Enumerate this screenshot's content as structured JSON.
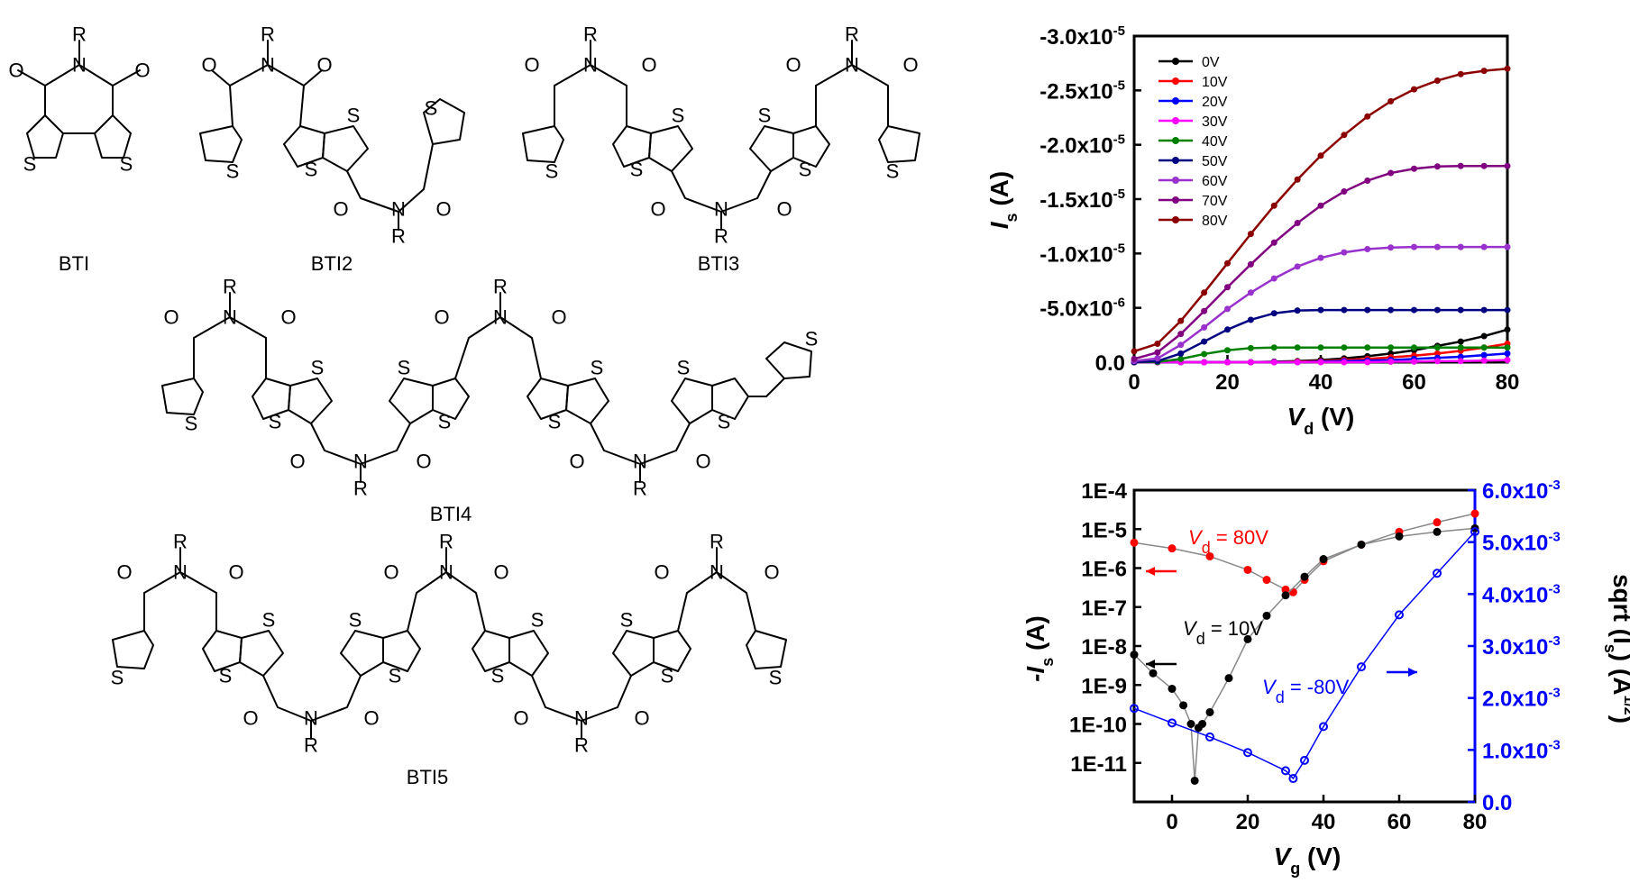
{
  "molecules": [
    {
      "name": "BTI"
    },
    {
      "name": "BTI2"
    },
    {
      "name": "BTI3"
    },
    {
      "name": "BTI4"
    },
    {
      "name": "BTI5"
    }
  ],
  "atom_labels": {
    "sulfur": "S",
    "oxygen": "O",
    "nitrogen": "N",
    "substituent": "R"
  },
  "chart_data": [
    {
      "type": "line",
      "title": "",
      "xlabel": "V_d (V)",
      "ylabel": "I_s (A)",
      "xlim": [
        0,
        80
      ],
      "ylim": [
        0,
        -3e-05
      ],
      "x_ticks": [
        "0",
        "20",
        "40",
        "60",
        "80"
      ],
      "y_ticks": [
        "0.0",
        "-5.0x10-6",
        "-1.0x10-5",
        "-1.5x10-5",
        "-2.0x10-5",
        "-2.5x10-5",
        "-3.0x10-5"
      ],
      "legend_position": "top-left",
      "x": [
        0,
        5,
        10,
        15,
        20,
        25,
        30,
        35,
        40,
        45,
        50,
        55,
        60,
        65,
        70,
        75,
        80
      ],
      "series": [
        {
          "name": "0V",
          "color": "#000000",
          "values": [
            0,
            0,
            0,
            0,
            0,
            0,
            -5e-08,
            -1e-07,
            -2e-07,
            -3.5e-07,
            -5.5e-07,
            -8e-07,
            -1.1e-06,
            -1.5e-06,
            -1.9e-06,
            -2.4e-06,
            -3e-06
          ]
        },
        {
          "name": "10V",
          "color": "#ff0000",
          "values": [
            0,
            0,
            0,
            0,
            0,
            0,
            0,
            -5e-08,
            -1e-07,
            -2e-07,
            -3e-07,
            -4.5e-07,
            -6e-07,
            -8e-07,
            -1.05e-06,
            -1.35e-06,
            -1.7e-06
          ]
        },
        {
          "name": "20V",
          "color": "#0000ff",
          "values": [
            0,
            0,
            0,
            0,
            0,
            0,
            0,
            0,
            -5e-08,
            -1e-07,
            -1.5e-07,
            -2e-07,
            -3e-07,
            -4e-07,
            -5e-07,
            -6.5e-07,
            -8e-07
          ]
        },
        {
          "name": "30V",
          "color": "#ff00ff",
          "values": [
            0,
            0,
            0,
            0,
            0,
            0,
            0,
            0,
            0,
            0,
            0,
            -5e-08,
            -5e-08,
            -1e-07,
            -1e-07,
            -1.5e-07,
            -2e-07
          ]
        },
        {
          "name": "40V",
          "color": "#008000",
          "values": [
            0,
            -2e-08,
            -3e-07,
            -7.5e-07,
            -1.1e-06,
            -1.3e-06,
            -1.35e-06,
            -1.35e-06,
            -1.35e-06,
            -1.35e-06,
            -1.35e-06,
            -1.35e-06,
            -1.35e-06,
            -1.35e-06,
            -1.35e-06,
            -1.35e-06,
            -1.35e-06
          ]
        },
        {
          "name": "50V",
          "color": "#000080",
          "values": [
            0,
            -1e-07,
            -8e-07,
            -1.9e-06,
            -3e-06,
            -3.9e-06,
            -4.5e-06,
            -4.75e-06,
            -4.8e-06,
            -4.8e-06,
            -4.8e-06,
            -4.8e-06,
            -4.8e-06,
            -4.8e-06,
            -4.8e-06,
            -4.8e-06,
            -4.8e-06
          ]
        },
        {
          "name": "60V",
          "color": "#9932cc",
          "values": [
            -1e-07,
            -3.5e-07,
            -1.6e-06,
            -3.2e-06,
            -4.9e-06,
            -6.4e-06,
            -7.7e-06,
            -8.8e-06,
            -9.6e-06,
            -1.01e-05,
            -1.04e-05,
            -1.055e-05,
            -1.06e-05,
            -1.06e-05,
            -1.06e-05,
            -1.06e-05,
            -1.06e-05
          ]
        },
        {
          "name": "70V",
          "color": "#800080",
          "values": [
            -3e-07,
            -9e-07,
            -2.6e-06,
            -4.7e-06,
            -6.9e-06,
            -9e-06,
            -1.1e-05,
            -1.28e-05,
            -1.44e-05,
            -1.57e-05,
            -1.67e-05,
            -1.74e-05,
            -1.78e-05,
            -1.8e-05,
            -1.805e-05,
            -1.805e-05,
            -1.805e-05
          ]
        },
        {
          "name": "80V",
          "color": "#8b0000",
          "values": [
            -1e-06,
            -1.7e-06,
            -3.8e-06,
            -6.4e-06,
            -9.1e-06,
            -1.18e-05,
            -1.44e-05,
            -1.68e-05,
            -1.9e-05,
            -2.09e-05,
            -2.26e-05,
            -2.4e-05,
            -2.51e-05,
            -2.59e-05,
            -2.65e-05,
            -2.68e-05,
            -2.7e-05
          ]
        }
      ]
    },
    {
      "type": "line",
      "title": "",
      "xlabel": "V_g (V)",
      "ylabel": "-I_s (A)",
      "ylabel_right": "sqrt (I_s) (A^1/2)",
      "xlim": [
        -10,
        80
      ],
      "ylim_log": [
        1e-12,
        0.0001
      ],
      "ylim_right": [
        0,
        0.006
      ],
      "x_ticks": [
        "0",
        "20",
        "40",
        "60",
        "80"
      ],
      "y_ticks": [
        "1E-11",
        "1E-10",
        "1E-9",
        "1E-8",
        "1E-7",
        "1E-6",
        "1E-5",
        "1E-4"
      ],
      "y_ticks_right": [
        "0.0",
        "1.0x10-3",
        "2.0x10-3",
        "3.0x10-3",
        "4.0x10-3",
        "5.0x10-3",
        "6.0x10-3"
      ],
      "annotations": [
        {
          "label": "V_d = 80V",
          "color": "#ff0000",
          "arrow": "left"
        },
        {
          "label": "V_d = 10V",
          "color": "#000000",
          "arrow": "left"
        },
        {
          "label": "V_d = -80V",
          "color": "#0000ff",
          "arrow": "right"
        }
      ],
      "series": [
        {
          "name": "V_d = 80V",
          "axis": "left",
          "color": "#ff0000",
          "x": [
            -10,
            0,
            10,
            20,
            25,
            30,
            32,
            35,
            40,
            50,
            60,
            70,
            80
          ],
          "values": [
            4.5e-06,
            3.2e-06,
            2e-06,
            9e-07,
            5e-07,
            2.8e-07,
            2.4e-07,
            5e-07,
            1.5e-06,
            4e-06,
            8.5e-06,
            1.5e-05,
            2.5e-05
          ]
        },
        {
          "name": "V_d = 10V",
          "axis": "left",
          "color": "#000000",
          "x": [
            -10,
            -5,
            0,
            3,
            5,
            6,
            7,
            8,
            10,
            15,
            20,
            25,
            30,
            35,
            40,
            50,
            60,
            70,
            80
          ],
          "values": [
            6e-09,
            2e-09,
            8e-10,
            3e-10,
            1e-10,
            3.5e-12,
            8e-11,
            1e-10,
            2e-10,
            1.5e-09,
            1.5e-08,
            6e-08,
            2e-07,
            6e-07,
            1.7e-06,
            4e-06,
            6.5e-06,
            8.5e-06,
            1.05e-05
          ]
        },
        {
          "name": "V_d = -80V",
          "axis": "right",
          "color": "#0000ff",
          "x": [
            -10,
            0,
            10,
            20,
            30,
            32,
            35,
            40,
            50,
            60,
            70,
            80
          ],
          "values": [
            0.0018,
            0.00152,
            0.00125,
            0.00095,
            0.0006,
            0.00045,
            0.0008,
            0.00145,
            0.0026,
            0.0036,
            0.0044,
            0.0052
          ]
        }
      ]
    }
  ]
}
